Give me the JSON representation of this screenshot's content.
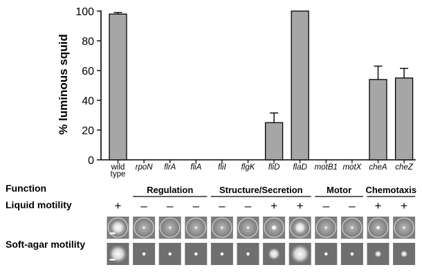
{
  "chart_data": {
    "type": "bar",
    "ylabel": "% luminous squid",
    "ylim": [
      0,
      100
    ],
    "yticks": [
      0,
      20,
      40,
      60,
      80,
      100
    ],
    "categories": [
      {
        "label": "wild type",
        "lines": [
          "wild",
          "type"
        ],
        "italic": false
      },
      {
        "label": "rpoN",
        "lines": [
          "rpoN"
        ],
        "italic": true
      },
      {
        "label": "flrA",
        "lines": [
          "flrA"
        ],
        "italic": true
      },
      {
        "label": "fliA",
        "lines": [
          "fliA"
        ],
        "italic": true
      },
      {
        "label": "fliI",
        "lines": [
          "fliI"
        ],
        "italic": true
      },
      {
        "label": "flgK",
        "lines": [
          "flgK"
        ],
        "italic": true
      },
      {
        "label": "fliD",
        "lines": [
          "fliD"
        ],
        "italic": true
      },
      {
        "label": "flaD",
        "lines": [
          "flaD"
        ],
        "italic": true
      },
      {
        "label": "motB1",
        "lines": [
          "motB1"
        ],
        "italic": true
      },
      {
        "label": "motX",
        "lines": [
          "motX"
        ],
        "italic": true
      },
      {
        "label": "cheA",
        "lines": [
          "cheA"
        ],
        "italic": true
      },
      {
        "label": "cheZ",
        "lines": [
          "cheZ"
        ],
        "italic": true
      }
    ],
    "values": [
      98,
      0,
      0,
      0,
      0,
      0,
      25,
      100,
      0,
      0,
      54,
      55
    ],
    "errors": [
      1,
      0,
      0,
      0,
      0,
      0,
      6.5,
      0,
      0,
      0,
      9,
      6.5
    ],
    "bar_color": "#a6a6a6",
    "function_label": "Function",
    "function_groups": [
      {
        "name": "Regulation",
        "from": 1,
        "to": 3
      },
      {
        "name": "Structure/Secretion",
        "from": 4,
        "to": 7
      },
      {
        "name": "Motor",
        "from": 8,
        "to": 9
      },
      {
        "name": "Chemotaxis",
        "from": 10,
        "to": 11
      }
    ],
    "liquid_label": "Liquid motility",
    "liquid_motility": [
      "+",
      "–",
      "–",
      "–",
      "–",
      "–",
      "+",
      "+",
      "–",
      "–",
      "+",
      "+"
    ],
    "softagar_label": "Soft-agar motility",
    "softagar_row1_spread": [
      0.75,
      0.05,
      0.05,
      0.05,
      0.05,
      0.05,
      0.2,
      0.65,
      0.05,
      0.05,
      0.15,
      0.1
    ],
    "softagar_row2_spread": [
      0.9,
      0.15,
      0.15,
      0.15,
      0.15,
      0.15,
      0.6,
      0.95,
      0.15,
      0.15,
      0.35,
      0.35
    ]
  }
}
